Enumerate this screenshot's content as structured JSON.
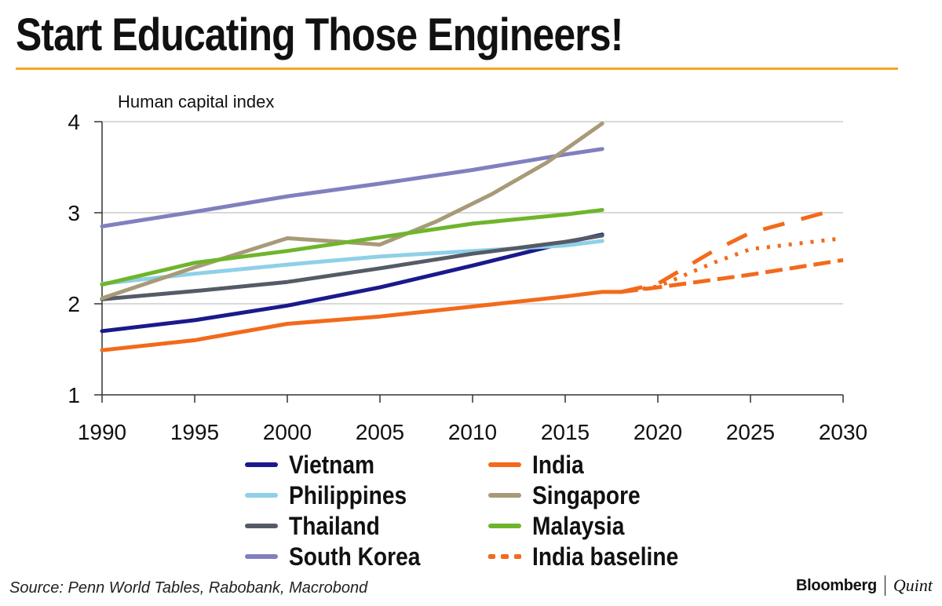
{
  "headline": "Start Educating Those Engineers!",
  "accent_color": "#F5A623",
  "source": "Source: Penn World Tables, Rabobank, Macrobond",
  "brand": {
    "primary": "Bloomberg",
    "secondary": "Quint"
  },
  "chart_data": {
    "type": "line",
    "title": "Start Educating Those Engineers!",
    "ylabel": "Human capital index",
    "xlabel": "",
    "xlim": [
      1990,
      2030
    ],
    "ylim": [
      1,
      4
    ],
    "xticks": [
      1990,
      1995,
      2000,
      2005,
      2010,
      2015,
      2020,
      2025,
      2030
    ],
    "yticks": [
      1,
      2,
      3,
      4
    ],
    "grid": true,
    "legend_position": "bottom",
    "series": [
      {
        "name": "Vietnam",
        "color": "#1A1A8C",
        "dash": "solid",
        "x": [
          1990,
          1995,
          2000,
          2005,
          2010,
          2015,
          2017
        ],
        "y": [
          1.7,
          1.82,
          1.98,
          2.18,
          2.42,
          2.67,
          2.76
        ]
      },
      {
        "name": "Philippines",
        "color": "#8FD0E8",
        "dash": "solid",
        "x": [
          1990,
          1995,
          2000,
          2005,
          2010,
          2015,
          2017
        ],
        "y": [
          2.22,
          2.33,
          2.43,
          2.52,
          2.58,
          2.64,
          2.69
        ]
      },
      {
        "name": "Thailand",
        "color": "#555B66",
        "dash": "solid",
        "x": [
          1990,
          1995,
          2000,
          2005,
          2010,
          2015,
          2017
        ],
        "y": [
          2.05,
          2.14,
          2.24,
          2.39,
          2.55,
          2.68,
          2.75
        ]
      },
      {
        "name": "South Korea",
        "color": "#8080C0",
        "dash": "solid",
        "x": [
          1990,
          1995,
          2000,
          2005,
          2010,
          2015,
          2017
        ],
        "y": [
          2.85,
          3.01,
          3.18,
          3.32,
          3.47,
          3.64,
          3.7
        ]
      },
      {
        "name": "India",
        "color": "#F26A1B",
        "dash": "solid",
        "x": [
          1990,
          1995,
          2000,
          2005,
          2010,
          2015,
          2017,
          2018
        ],
        "y": [
          1.49,
          1.6,
          1.78,
          1.86,
          1.97,
          2.08,
          2.13,
          2.13
        ]
      },
      {
        "name": "Singapore",
        "color": "#A89A78",
        "dash": "solid",
        "x": [
          1990,
          1995,
          2000,
          2003,
          2005,
          2008,
          2011,
          2014,
          2017
        ],
        "y": [
          2.06,
          2.4,
          2.72,
          2.68,
          2.65,
          2.9,
          3.2,
          3.55,
          3.98
        ]
      },
      {
        "name": "Malaysia",
        "color": "#6FB52C",
        "dash": "solid",
        "x": [
          1990,
          1995,
          2000,
          2005,
          2010,
          2015,
          2017
        ],
        "y": [
          2.21,
          2.45,
          2.58,
          2.73,
          2.88,
          2.98,
          3.03
        ]
      },
      {
        "name": "India baseline",
        "color": "#F26A1B",
        "dash": "dashed",
        "x": [
          2018,
          2020,
          2025,
          2030
        ],
        "y": [
          2.13,
          2.18,
          2.32,
          2.48
        ]
      },
      {
        "name": "",
        "color": "#F26A1B",
        "dash": "dotted",
        "x": [
          2018,
          2020,
          2023,
          2025,
          2030
        ],
        "y": [
          2.13,
          2.19,
          2.45,
          2.6,
          2.72
        ]
      },
      {
        "name": "",
        "color": "#F26A1B",
        "dash": "longdash",
        "x": [
          2018,
          2020,
          2023,
          2025,
          2029
        ],
        "y": [
          2.13,
          2.22,
          2.58,
          2.78,
          3.0
        ]
      }
    ]
  }
}
